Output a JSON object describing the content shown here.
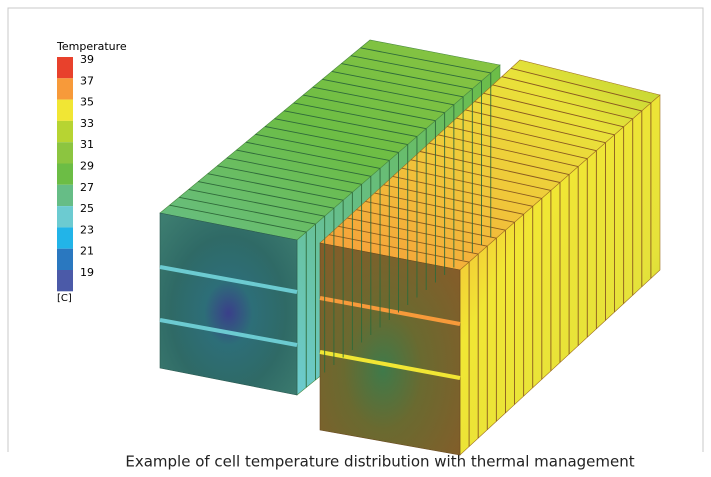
{
  "legend": {
    "title": "Temperature",
    "unit": "[C]",
    "entries": [
      {
        "label": "39",
        "color": "#e8412c"
      },
      {
        "label": "37",
        "color": "#f79a3a"
      },
      {
        "label": "35",
        "color": "#f1e634"
      },
      {
        "label": "33",
        "color": "#b7d432"
      },
      {
        "label": "31",
        "color": "#8cc540"
      },
      {
        "label": "29",
        "color": "#6cbd45"
      },
      {
        "label": "27",
        "color": "#66bd86"
      },
      {
        "label": "25",
        "color": "#6ccbd1"
      },
      {
        "label": "23",
        "color": "#22b4e8"
      },
      {
        "label": "21",
        "color": "#2a78c0"
      },
      {
        "label": "19",
        "color": "#4b5aa8"
      }
    ]
  },
  "caption": "Example of cell temperature distribution with thermal management"
}
